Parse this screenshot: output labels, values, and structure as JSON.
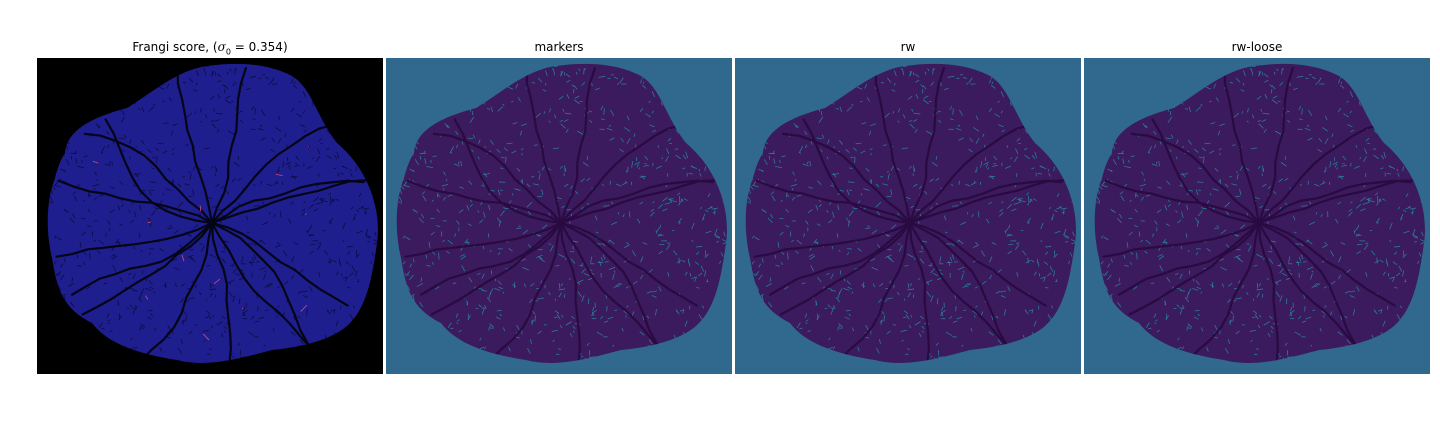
{
  "panels": [
    {
      "title": "Frangi score, (",
      "math_symbol": "σ",
      "math_sub": "0",
      "math_rest": " = 0.354)",
      "style": "frangi",
      "bg": "#000000",
      "blob": "#1e1e8e",
      "line": "#0a0a35",
      "accent": "#d84a6a"
    },
    {
      "title": "markers",
      "style": "markers",
      "bg": "#31688e",
      "blob": "#3b1a5e",
      "line": "#2a8ca0"
    },
    {
      "title": "rw",
      "style": "markers",
      "bg": "#31688e",
      "blob": "#3b1a5e",
      "line": "#2a8ca0"
    },
    {
      "title": "rw-loose",
      "style": "markers",
      "bg": "#31688e",
      "blob": "#3b1a5e",
      "line": "#2a8ca0"
    }
  ]
}
